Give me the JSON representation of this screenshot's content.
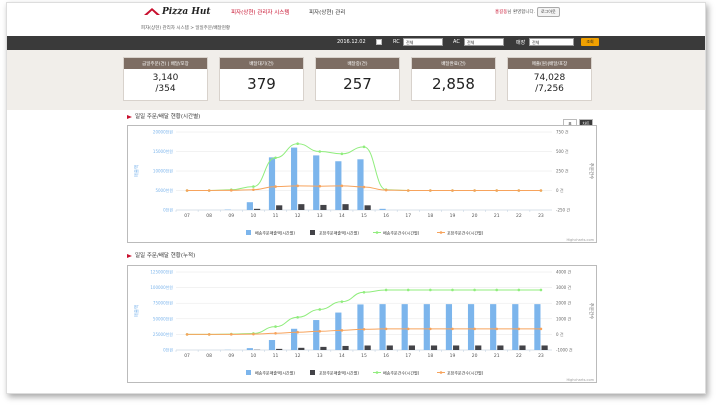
{
  "header": {
    "logo": "Pizza Hut",
    "nav_active": "피자(상현) 관리자 시스템",
    "nav_item": "피자(상현) 관리",
    "user_name": "홍길동",
    "user_suffix": "님 환영합니다.",
    "logout": "로그아웃",
    "breadcrumb": "피자(상현) 관리자 시스템 > 일일주문/배달현황"
  },
  "filter": {
    "date": "2016.12.02",
    "rc_label": "RC",
    "rc_value": "전체",
    "ac_label": "AC",
    "ac_value": "전체",
    "store_label": "매장",
    "store_value": "전체",
    "search_button": "조회"
  },
  "stats": [
    {
      "label": "금일주문(건) | 배달/포장",
      "value": "3,140",
      "sub": "/354"
    },
    {
      "label": "배달대기(건)",
      "value": "379"
    },
    {
      "label": "배달중(건)",
      "value": "257"
    },
    {
      "label": "배달완료(건)",
      "value": "2,858"
    },
    {
      "label": "매출(원)|배달/포장",
      "value": "74,028",
      "sub": "/7,256"
    }
  ],
  "toggles": {
    "table": "표",
    "chart": "차트"
  },
  "credits": "Highcharts.com",
  "chart_data": [
    {
      "type": "bar",
      "title": "일일 주문/배달 현황(시간별)",
      "xlabel": "",
      "ylabel": "매출액",
      "y2label": "주문건수",
      "categories": [
        "07",
        "08",
        "09",
        "10",
        "11",
        "12",
        "13",
        "14",
        "15",
        "16",
        "17",
        "18",
        "19",
        "20",
        "21",
        "22",
        "23"
      ],
      "ylim": [
        0,
        20000
      ],
      "yticks": [
        "0천원",
        "5000천원",
        "10000천원",
        "15000천원",
        "20000천원"
      ],
      "y2lim": [
        -250,
        750
      ],
      "y2ticks": [
        "-250 건",
        "0 건",
        "250 건",
        "500 건",
        "750 건"
      ],
      "series": [
        {
          "name": "배송주문매출액(시간별)",
          "type": "column",
          "axis": "left",
          "color": "#7cb5ec",
          "values": [
            0,
            0,
            100,
            2000,
            13500,
            16000,
            14000,
            12500,
            13000,
            300,
            0,
            0,
            0,
            0,
            0,
            0,
            0
          ]
        },
        {
          "name": "포장주문매출액(시간별)",
          "type": "column",
          "axis": "left",
          "color": "#434348",
          "values": [
            0,
            0,
            0,
            300,
            1200,
            1500,
            1300,
            1500,
            1200,
            0,
            0,
            0,
            0,
            0,
            0,
            0,
            0
          ]
        },
        {
          "name": "배송주문건수(시간별)",
          "type": "line",
          "axis": "right",
          "color": "#90ed7d",
          "values": [
            0,
            0,
            10,
            50,
            420,
            600,
            500,
            470,
            560,
            10,
            0,
            0,
            0,
            0,
            0,
            0,
            0
          ]
        },
        {
          "name": "포장주문건수(시간별)",
          "type": "line",
          "axis": "right",
          "color": "#f7a35c",
          "values": [
            0,
            0,
            2,
            10,
            50,
            60,
            55,
            60,
            45,
            5,
            0,
            0,
            0,
            0,
            0,
            0,
            0
          ]
        }
      ]
    },
    {
      "type": "bar",
      "title": "일일 주문/배달 현황(누적)",
      "xlabel": "",
      "ylabel": "매출액",
      "y2label": "주문건수",
      "categories": [
        "07",
        "08",
        "09",
        "10",
        "11",
        "12",
        "13",
        "14",
        "15",
        "16",
        "17",
        "18",
        "19",
        "20",
        "21",
        "22",
        "23"
      ],
      "ylim": [
        0,
        125000
      ],
      "yticks": [
        "0천원",
        "25000천원",
        "50000천원",
        "75000천원",
        "100000천원",
        "125000천원"
      ],
      "y2lim": [
        -1000,
        4000
      ],
      "y2ticks": [
        "-1000 건",
        "0 건",
        "1000 건",
        "2000 건",
        "3000 건",
        "4000 건"
      ],
      "series": [
        {
          "name": "배송주문매출액(시간별)",
          "type": "column",
          "axis": "left",
          "color": "#7cb5ec",
          "values": [
            0,
            0,
            300,
            3000,
            16000,
            34000,
            48000,
            60000,
            73000,
            73500,
            73500,
            73500,
            73500,
            73500,
            73500,
            73500,
            73500
          ]
        },
        {
          "name": "포장주문매출액(시간별)",
          "type": "column",
          "axis": "left",
          "color": "#434348",
          "values": [
            0,
            0,
            0,
            400,
            1800,
            3500,
            5000,
            6500,
            7200,
            7256,
            7256,
            7256,
            7256,
            7256,
            7256,
            7256,
            7256
          ]
        },
        {
          "name": "배송주문건수(시간별)",
          "type": "line",
          "axis": "right",
          "color": "#90ed7d",
          "values": [
            0,
            0,
            20,
            60,
            500,
            1100,
            1600,
            2100,
            2700,
            2850,
            2850,
            2850,
            2850,
            2850,
            2850,
            2850,
            2850
          ]
        },
        {
          "name": "포장주문건수(시간별)",
          "type": "line",
          "axis": "right",
          "color": "#f7a35c",
          "values": [
            0,
            0,
            3,
            15,
            70,
            140,
            200,
            260,
            330,
            354,
            354,
            354,
            354,
            354,
            354,
            354,
            354
          ]
        }
      ]
    }
  ]
}
